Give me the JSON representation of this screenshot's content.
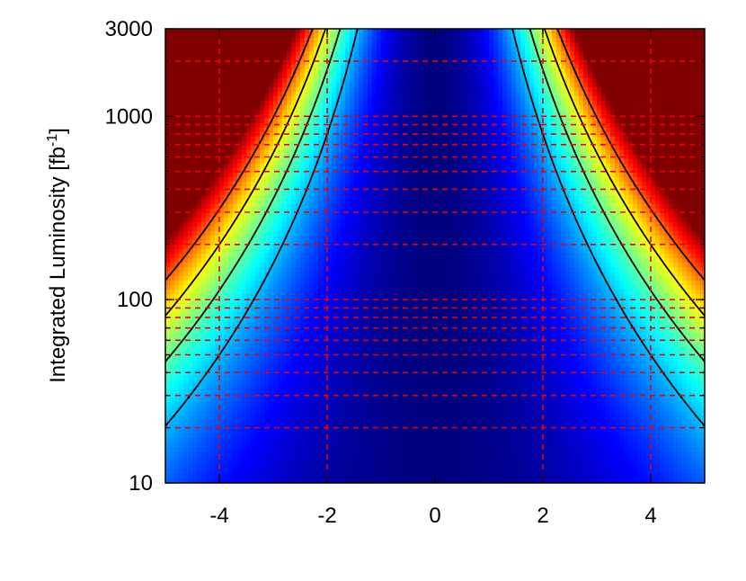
{
  "chart_data": {
    "type": "heatmap",
    "title": "",
    "xlabel": "",
    "ylabel": "Integrated Luminosity [fb",
    "ylabel_sup": "-1",
    "ylabel_suffix": "]",
    "xlim": [
      -5,
      5
    ],
    "ylim": [
      10,
      3000
    ],
    "y_scale": "log",
    "colormap": "jet",
    "x_ticks": [
      {
        "value": -4,
        "label": "-4"
      },
      {
        "value": -2,
        "label": "-2"
      },
      {
        "value": 0,
        "label": "0"
      },
      {
        "value": 2,
        "label": "2"
      },
      {
        "value": 4,
        "label": "4"
      }
    ],
    "y_ticks": [
      {
        "value": 10,
        "label": "10"
      },
      {
        "value": 100,
        "label": "100"
      },
      {
        "value": 1000,
        "label": "1000"
      },
      {
        "value": 3000,
        "label": "3000"
      }
    ],
    "grid": {
      "style": "dashed",
      "color": "#ee0000",
      "x": [
        -4,
        -2,
        2,
        4
      ],
      "y": [
        20,
        30,
        40,
        50,
        60,
        70,
        80,
        90,
        100,
        200,
        300,
        400,
        500,
        600,
        700,
        800,
        900,
        1000,
        2000
      ]
    },
    "heatmap_model": {
      "description_free": true,
      "x_power": 2,
      "color_max": 32
    },
    "contours": {
      "color": "#000000",
      "levels": [
        10,
        15,
        20,
        25
      ]
    }
  }
}
